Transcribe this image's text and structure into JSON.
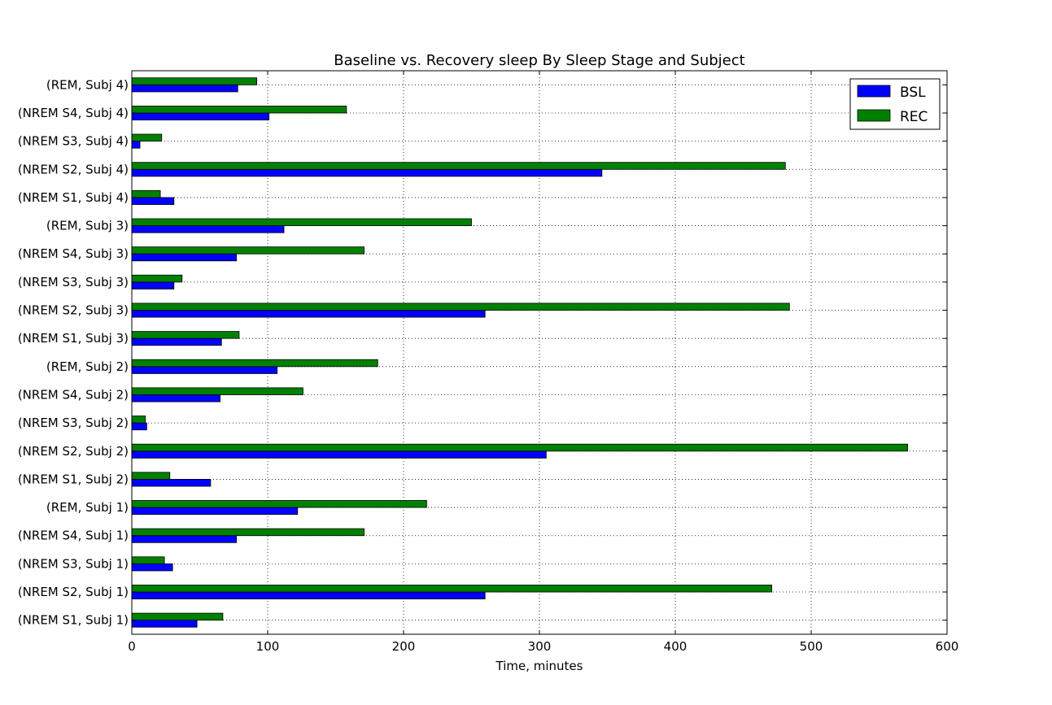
{
  "chart_data": {
    "type": "bar",
    "orientation": "horizontal",
    "title": "Baseline vs. Recovery sleep By Sleep Stage and Subject",
    "xlabel": "Time, minutes",
    "ylabel": "",
    "xlim": [
      0,
      600
    ],
    "xticks": [
      "0",
      "100",
      "200",
      "300",
      "400",
      "500",
      "600"
    ],
    "grid": true,
    "legend_position": "top-right",
    "categories": [
      "(NREM S1, Subj 1)",
      "(NREM S2, Subj 1)",
      "(NREM S3, Subj 1)",
      "(NREM S4, Subj 1)",
      "(REM, Subj 1)",
      "(NREM S1, Subj 2)",
      "(NREM S2, Subj 2)",
      "(NREM S3, Subj 2)",
      "(NREM S4, Subj 2)",
      "(REM, Subj 2)",
      "(NREM S1, Subj 3)",
      "(NREM S2, Subj 3)",
      "(NREM S3, Subj 3)",
      "(NREM S4, Subj 3)",
      "(REM, Subj 3)",
      "(NREM S1, Subj 4)",
      "(NREM S2, Subj 4)",
      "(NREM S3, Subj 4)",
      "(NREM S4, Subj 4)",
      "(REM, Subj 4)"
    ],
    "series": [
      {
        "name": "BSL",
        "color": "#0000ff",
        "values": [
          48,
          260,
          30,
          77,
          122,
          58,
          305,
          11,
          65,
          107,
          66,
          260,
          31,
          77,
          112,
          31,
          346,
          6,
          101,
          78
        ]
      },
      {
        "name": "REC",
        "color": "#008000",
        "values": [
          67,
          471,
          24,
          171,
          217,
          28,
          571,
          10,
          126,
          181,
          79,
          484,
          37,
          171,
          250,
          21,
          481,
          22,
          158,
          92
        ]
      }
    ]
  }
}
